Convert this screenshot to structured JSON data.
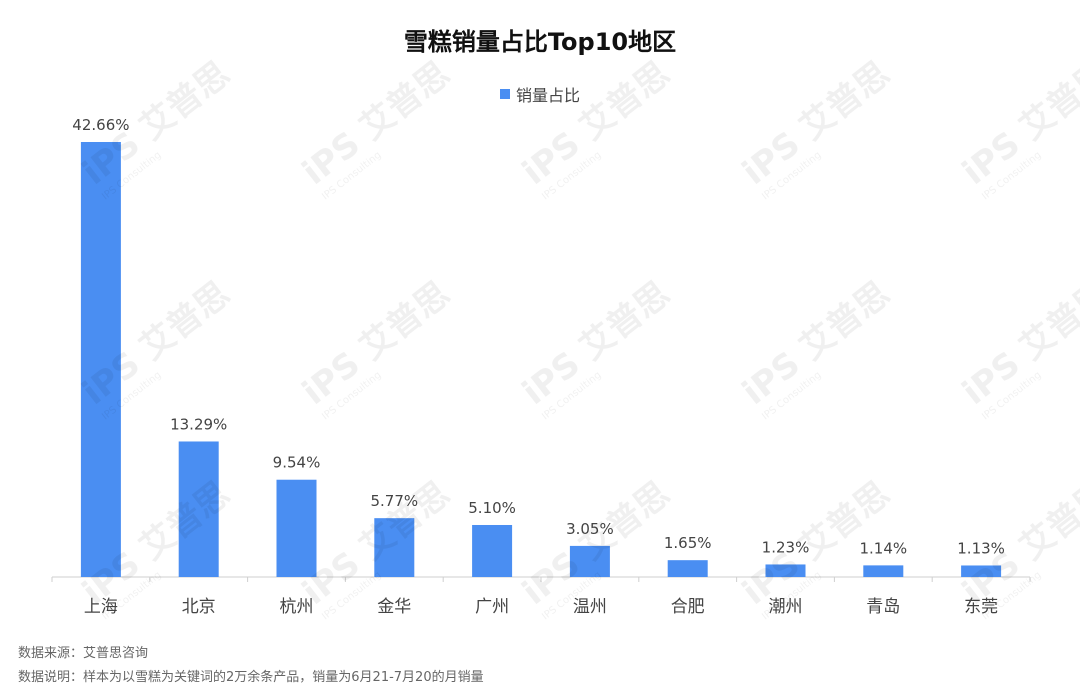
{
  "chart_data": {
    "type": "bar",
    "title": "雪糕销量占比Top10地区",
    "categories": [
      "上海",
      "北京",
      "杭州",
      "金华",
      "广州",
      "温州",
      "合肥",
      "潮州",
      "青岛",
      "东莞"
    ],
    "series": [
      {
        "name": "销量占比",
        "values": [
          42.66,
          13.29,
          9.54,
          5.77,
          5.1,
          3.05,
          1.65,
          1.23,
          1.14,
          1.13
        ],
        "labels": [
          "42.66%",
          "13.29%",
          "9.54%",
          "5.77%",
          "5.10%",
          "3.05%",
          "1.65%",
          "1.23%",
          "1.14%",
          "1.13%"
        ]
      }
    ],
    "ylim": [
      0,
      42.66
    ],
    "grid": false,
    "legend_position": "top-center",
    "bar_color": "#4a8ef2"
  },
  "watermark": {
    "text": "艾普思",
    "sub": "IPS Consulting"
  },
  "footer": {
    "source": "数据来源：艾普思咨询",
    "note": "数据说明：样本为以雪糕为关键词的2万余条产品，销量为6月21-7月20的月销量"
  }
}
